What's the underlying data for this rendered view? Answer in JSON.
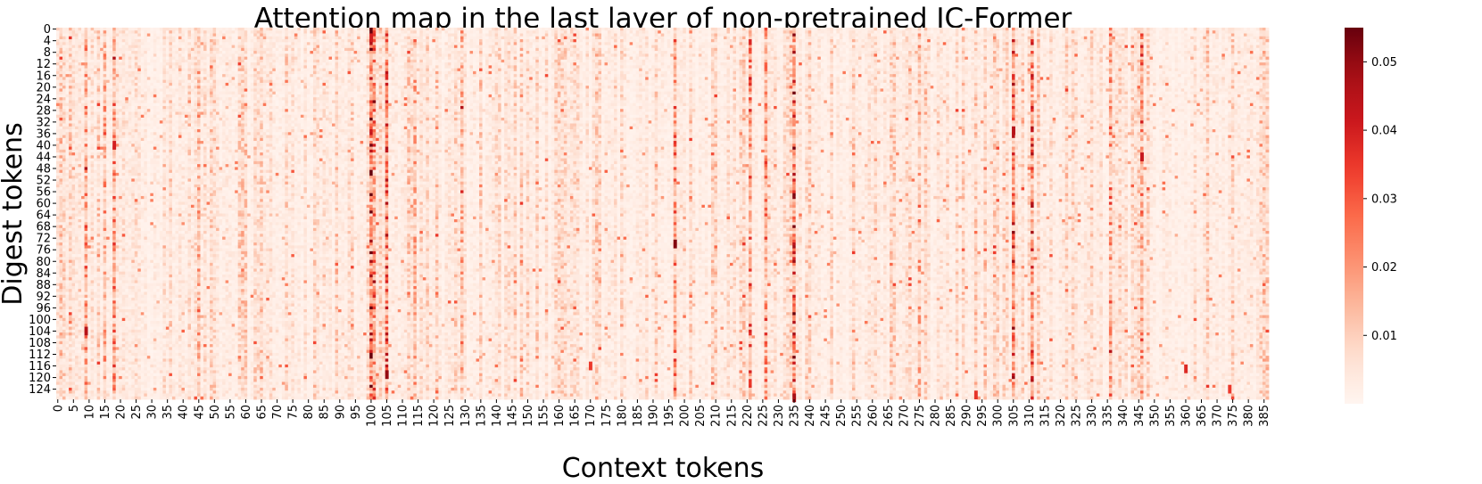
{
  "chart_data": {
    "type": "heatmap",
    "title": "Attention map in the last layer of non-pretrained IC-Former",
    "xlabel": "Context tokens",
    "ylabel": "Digest tokens",
    "n_columns": 387,
    "n_rows": 128,
    "x_ticks": [
      0,
      5,
      10,
      15,
      20,
      25,
      30,
      35,
      40,
      45,
      50,
      55,
      60,
      65,
      70,
      75,
      80,
      85,
      90,
      95,
      100,
      105,
      110,
      115,
      120,
      125,
      130,
      135,
      140,
      145,
      150,
      155,
      160,
      165,
      170,
      175,
      180,
      185,
      190,
      195,
      200,
      205,
      210,
      215,
      220,
      225,
      230,
      235,
      240,
      245,
      250,
      255,
      260,
      265,
      270,
      275,
      280,
      285,
      290,
      295,
      300,
      305,
      310,
      315,
      320,
      325,
      330,
      335,
      340,
      345,
      350,
      355,
      360,
      365,
      370,
      375,
      380,
      385
    ],
    "y_ticks": [
      0,
      4,
      8,
      12,
      16,
      20,
      24,
      28,
      32,
      36,
      40,
      44,
      48,
      52,
      56,
      60,
      64,
      68,
      72,
      76,
      80,
      84,
      88,
      92,
      96,
      100,
      104,
      108,
      112,
      116,
      120,
      124
    ],
    "colorbar": {
      "colormap": "Reds",
      "min": 0.0,
      "max": 0.055,
      "ticks": [
        0.01,
        0.02,
        0.03,
        0.04,
        0.05
      ],
      "tick_labels": [
        "0.01",
        "0.02",
        "0.03",
        "0.04",
        "0.05"
      ]
    },
    "strong_columns": [
      {
        "x": 100,
        "level": 0.045
      },
      {
        "x": 101,
        "level": 0.03
      },
      {
        "x": 105,
        "level": 0.035
      },
      {
        "x": 235,
        "level": 0.04
      },
      {
        "x": 305,
        "level": 0.038
      },
      {
        "x": 311,
        "level": 0.036
      },
      {
        "x": 221,
        "level": 0.03
      },
      {
        "x": 226,
        "level": 0.028
      },
      {
        "x": 18,
        "level": 0.028
      },
      {
        "x": 9,
        "level": 0.025
      },
      {
        "x": 15,
        "level": 0.022
      },
      {
        "x": 336,
        "level": 0.027
      },
      {
        "x": 346,
        "level": 0.03
      },
      {
        "x": 197,
        "level": 0.028
      },
      {
        "x": 45,
        "level": 0.02
      },
      {
        "x": 114,
        "level": 0.02
      },
      {
        "x": 129,
        "level": 0.02
      },
      {
        "x": 275,
        "level": 0.02
      },
      {
        "x": 385,
        "level": 0.015
      }
    ],
    "hot_cells": [
      {
        "x": 197,
        "y": 73,
        "value": 0.052
      },
      {
        "x": 105,
        "y": 118,
        "value": 0.05
      },
      {
        "x": 9,
        "y": 103,
        "value": 0.045
      },
      {
        "x": 235,
        "y": 126,
        "value": 0.048
      },
      {
        "x": 305,
        "y": 34,
        "value": 0.045
      },
      {
        "x": 346,
        "y": 43,
        "value": 0.042
      },
      {
        "x": 100,
        "y": 2,
        "value": 0.04
      },
      {
        "x": 18,
        "y": 39,
        "value": 0.04
      },
      {
        "x": 360,
        "y": 116,
        "value": 0.038
      },
      {
        "x": 374,
        "y": 123,
        "value": 0.035
      },
      {
        "x": 293,
        "y": 125,
        "value": 0.036
      },
      {
        "x": 170,
        "y": 115,
        "value": 0.035
      }
    ]
  }
}
